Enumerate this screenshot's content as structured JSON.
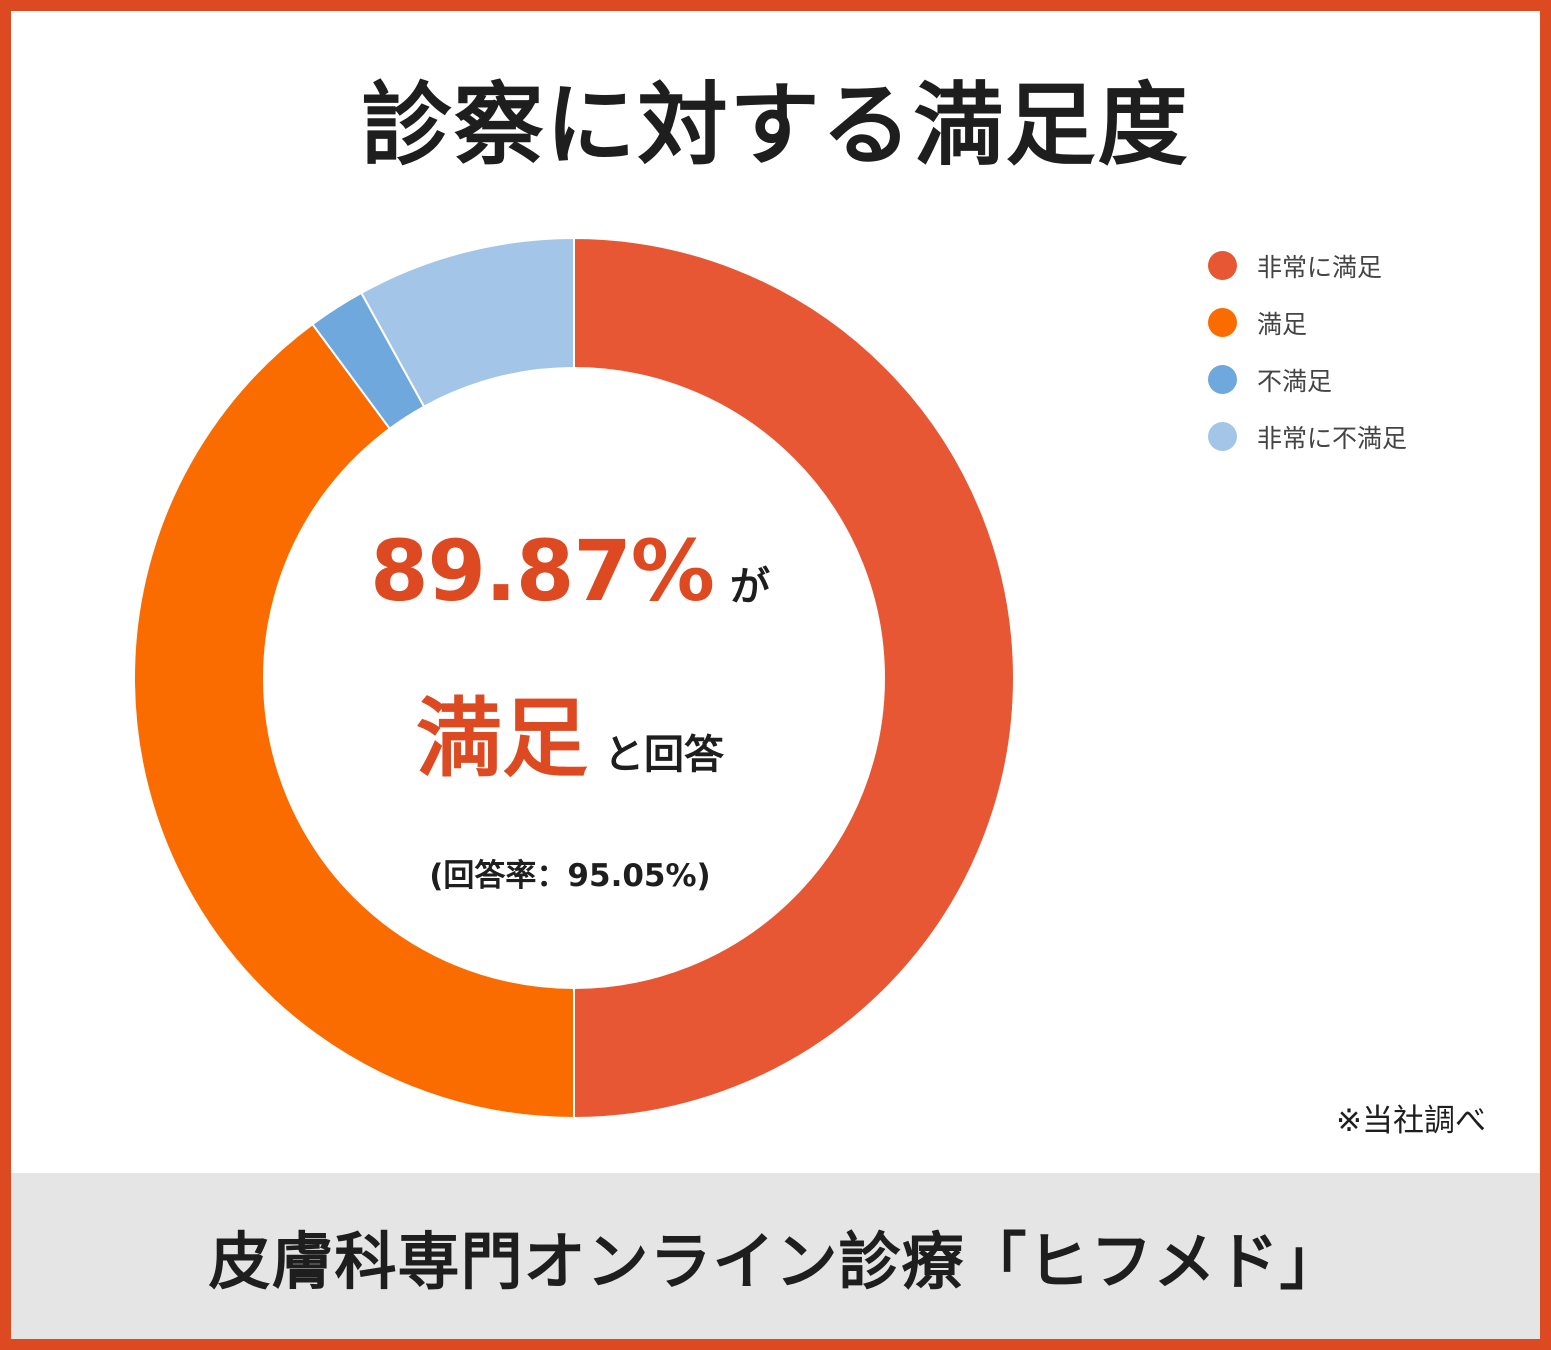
{
  "chart_data": {
    "type": "pie",
    "title": "診察に対する満足度",
    "categories": [
      "非常に満足",
      "満足",
      "不満足",
      "非常に不満足"
    ],
    "values": [
      50.0,
      39.87,
      2.1,
      8.03
    ],
    "colors": [
      "#e85734",
      "#fb6c00",
      "#6fa8dc",
      "#a3c6e8"
    ],
    "legend_position": "top-right",
    "center_text": {
      "percentage": "89.87%",
      "percentage_suffix": "が",
      "emphasis": "満足",
      "emphasis_suffix": "と回答",
      "response_rate": "(回答率：95.05%)"
    },
    "source_note": "※当社調べ"
  },
  "footer": {
    "text": "皮膚科専門オンライン診療「ヒフメド」"
  }
}
